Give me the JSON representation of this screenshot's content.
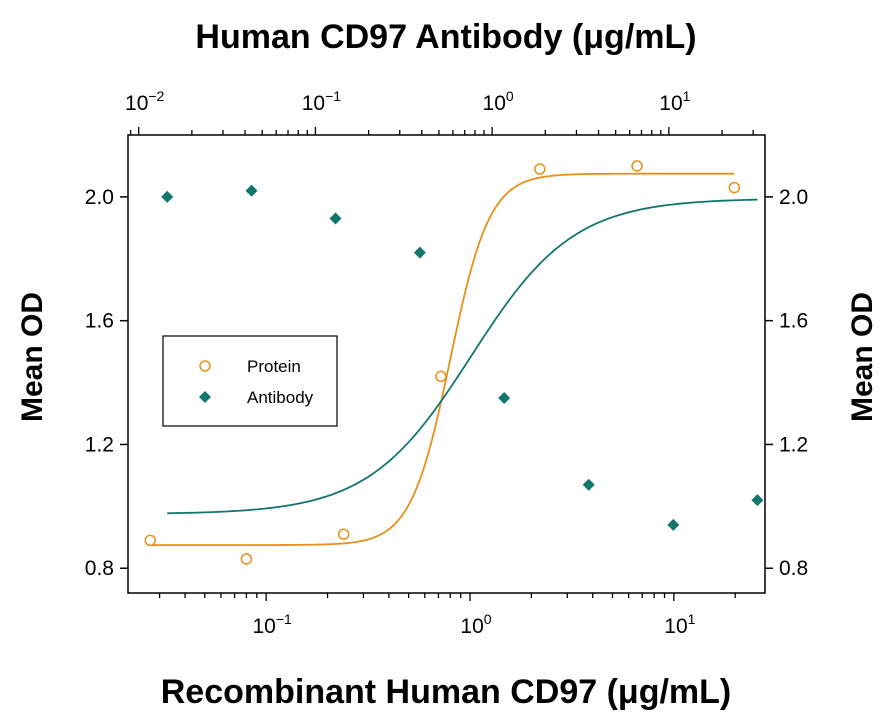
{
  "chart_data": {
    "type": "scatter",
    "top_axis_title": "Human CD97 Antibody (μg/mL)",
    "bottom_axis_title": "Recombinant Human CD97 (μg/mL)",
    "y_axis_title_left": "Mean OD",
    "y_axis_title_right": "Mean OD",
    "y_ticks": [
      "0.8",
      "1.2",
      "1.6",
      "2.0"
    ],
    "y_range": [
      0.72,
      2.2
    ],
    "bottom_x_scale": "log",
    "bottom_x_range": [
      0.021,
      28
    ],
    "bottom_x_ticks": [
      {
        "base": "10",
        "exp": "−1",
        "value": 0.1
      },
      {
        "base": "10",
        "exp": "0",
        "value": 1
      },
      {
        "base": "10",
        "exp": "1",
        "value": 10
      }
    ],
    "top_x_scale": "log",
    "top_x_range": [
      0.0087,
      35
    ],
    "top_x_ticks": [
      {
        "base": "10",
        "exp": "−2",
        "value": 0.01
      },
      {
        "base": "10",
        "exp": "−1",
        "value": 0.1
      },
      {
        "base": "10",
        "exp": "0",
        "value": 1
      },
      {
        "base": "10",
        "exp": "1",
        "value": 10
      }
    ],
    "legend_placement": "center-left",
    "series": [
      {
        "name": "Protein",
        "axis": "bottom",
        "marker": "open-circle",
        "color": "#E8901A",
        "x": [
          0.027,
          0.08,
          0.24,
          0.72,
          2.2,
          6.6,
          19.8
        ],
        "y": [
          0.89,
          0.83,
          0.91,
          1.42,
          2.09,
          2.1,
          2.03
        ],
        "fit": {
          "bottom": 0.875,
          "top": 2.075,
          "ec50": 0.8,
          "hill": 4.5
        }
      },
      {
        "name": "Antibody",
        "axis": "top",
        "marker": "filled-diamond",
        "color": "#11766E",
        "x": [
          0.0145,
          0.0435,
          0.13,
          0.39,
          1.17,
          3.52,
          10.6,
          31.7
        ],
        "y": [
          2.0,
          2.02,
          1.93,
          1.82,
          1.35,
          1.07,
          0.94,
          1.02
        ],
        "fit": {
          "bottom": 0.975,
          "top": 1.995,
          "ec50": 0.76,
          "hill": 1.5
        }
      }
    ]
  }
}
